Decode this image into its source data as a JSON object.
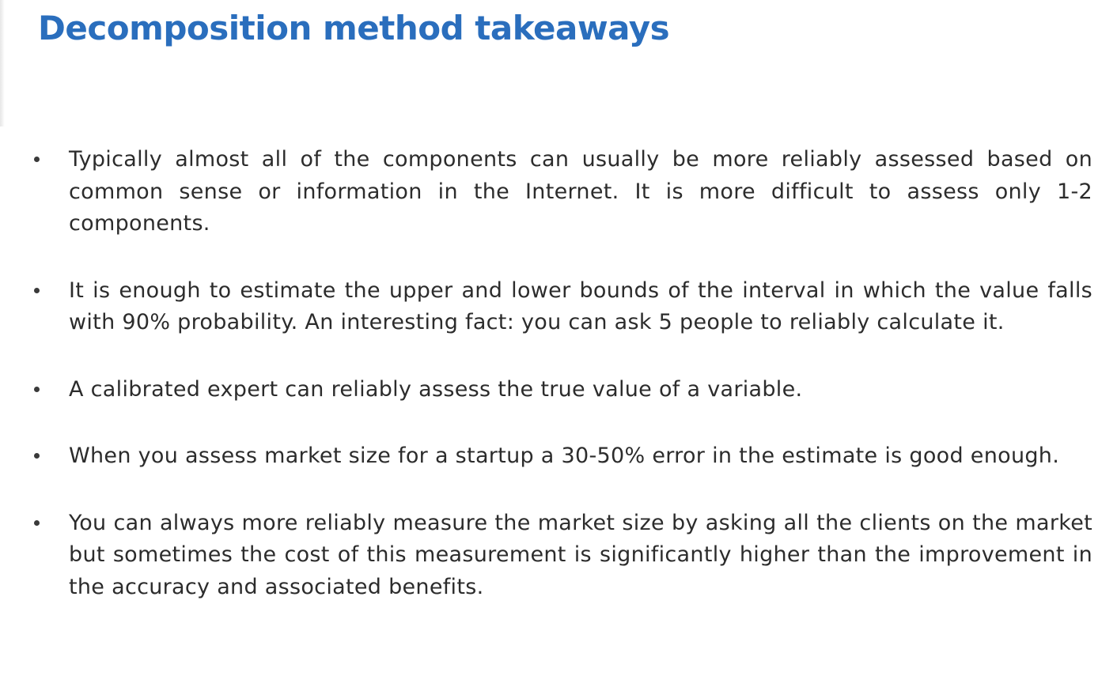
{
  "slide": {
    "title": "Decomposition method takeaways",
    "colors": {
      "title": "#2a6ebd",
      "text": "#2c2c2c",
      "background": "#ffffff"
    },
    "bullets": [
      {
        "icon": "bullet-dot",
        "text": "Typically almost all of the components can usually be more reliably assessed based on common sense or information in the Internet. It is more difficult to assess only 1-2 components."
      },
      {
        "icon": "bullet-dot",
        "text": "It is enough to estimate the upper and lower bounds of the interval in which the value falls with 90% probability. An interesting fact: you can ask 5 people to reliably calculate it."
      },
      {
        "icon": "bullet-dot",
        "text": "A calibrated expert can reliably assess the true value of a variable."
      },
      {
        "icon": "bullet-dot",
        "text": "When you assess market size for a startup a 30-50% error in the estimate is good enough."
      },
      {
        "icon": "bullet-dot",
        "text": "You can always more reliably measure the market size by asking all the clients on the market but sometimes the cost of this measurement is significantly higher than the improvement in the accuracy and associated benefits."
      }
    ]
  }
}
